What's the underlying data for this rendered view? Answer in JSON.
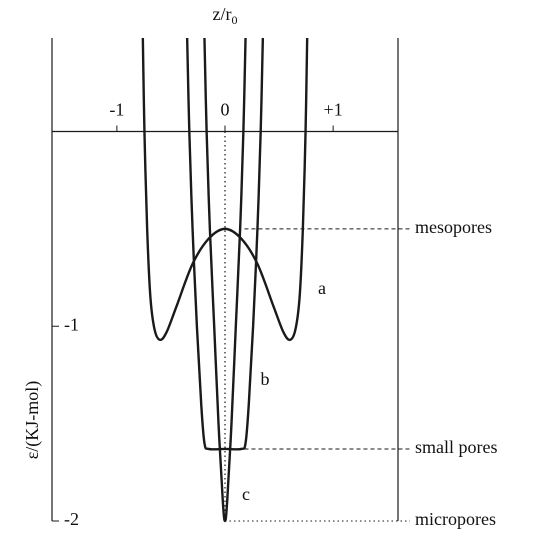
{
  "chart_data": {
    "type": "line",
    "xlabel": {
      "text": "z/r",
      "subscript": "0"
    },
    "ylabel": "ε/(KJ-mol)",
    "xlim": [
      -1.6,
      1.6
    ],
    "ylim": [
      -2,
      0.48
    ],
    "xticks": [
      -1,
      0,
      {
        "value": 1,
        "label": "+1"
      }
    ],
    "yticks": [
      -1,
      -2
    ],
    "color": "#1a1a1a",
    "series": [
      {
        "name": "a",
        "x": [
          -0.76,
          -0.745,
          -0.72,
          -0.69,
          -0.65,
          -0.6,
          -0.54,
          -0.45,
          -0.3,
          -0.15,
          0,
          0.15,
          0.3,
          0.45,
          0.54,
          0.6,
          0.65,
          0.69,
          0.72,
          0.745,
          0.76
        ],
        "values": [
          0.48,
          0,
          -0.5,
          -0.85,
          -1.02,
          -1.07,
          -1.03,
          -0.9,
          -0.68,
          -0.55,
          -0.5,
          -0.55,
          -0.68,
          -0.9,
          -1.03,
          -1.07,
          -1.02,
          -0.85,
          -0.5,
          0,
          0.48
        ]
      },
      {
        "name": "b",
        "x": [
          -0.35,
          -0.33,
          -0.3,
          -0.26,
          -0.22,
          -0.19,
          -0.15,
          0,
          0.15,
          0.19,
          0.22,
          0.26,
          0.3,
          0.33,
          0.35
        ],
        "values": [
          0.48,
          0,
          -0.5,
          -1.0,
          -1.4,
          -1.6,
          -1.63,
          -1.63,
          -1.63,
          -1.6,
          -1.4,
          -1.0,
          -0.5,
          0,
          0.48
        ]
      },
      {
        "name": "c",
        "x": [
          -0.19,
          -0.17,
          -0.14,
          -0.1,
          -0.06,
          -0.02,
          0,
          0.02,
          0.06,
          0.1,
          0.14,
          0.17,
          0.19
        ],
        "values": [
          0.48,
          0,
          -0.5,
          -1.0,
          -1.5,
          -1.9,
          -2,
          -1.9,
          -1.5,
          -1.0,
          -0.5,
          0,
          0.48
        ]
      }
    ],
    "annotations": [
      {
        "label": "mesopores",
        "x": 0.18,
        "y": -0.5
      },
      {
        "label": "small pores",
        "x": 0.18,
        "y": -1.63
      },
      {
        "label": "micropores",
        "x": 0,
        "y": -2
      }
    ]
  }
}
